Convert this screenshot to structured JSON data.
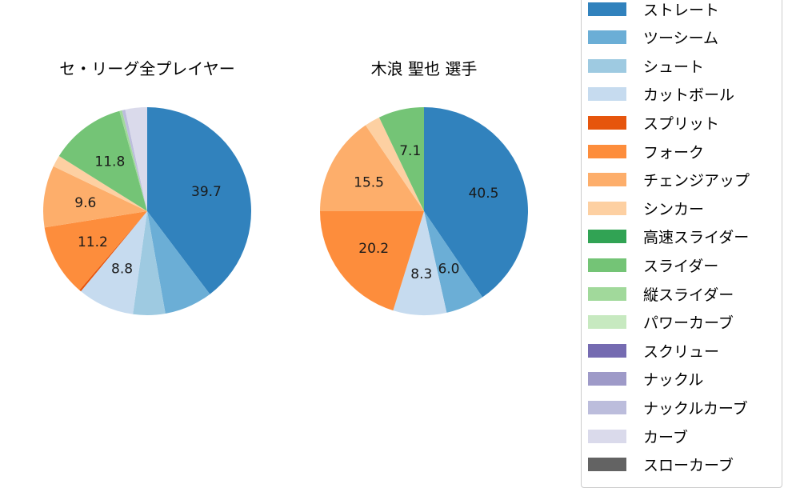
{
  "chart_data": [
    {
      "type": "pie",
      "title": "セ・リーグ全プレイヤー",
      "categories": [
        "ストレート",
        "ツーシーム",
        "シュート",
        "カットボール",
        "スプリット",
        "フォーク",
        "チェンジアップ",
        "シンカー",
        "スライダー",
        "縦スライダー",
        "ナックルカーブ",
        "カーブ"
      ],
      "values": [
        39.7,
        7.5,
        5.0,
        8.8,
        0.3,
        11.2,
        9.6,
        1.8,
        11.8,
        0.4,
        0.5,
        3.4
      ],
      "labels_shown": [
        "39.7",
        "",
        "",
        "8.8",
        "",
        "11.2",
        "9.6",
        "",
        "11.8",
        "",
        "",
        ""
      ],
      "start_angle": 90,
      "direction": "clockwise"
    },
    {
      "type": "pie",
      "title": "木浪 聖也  選手",
      "categories": [
        "ストレート",
        "ツーシーム",
        "カットボール",
        "フォーク",
        "チェンジアップ",
        "シンカー",
        "スライダー"
      ],
      "values": [
        40.5,
        6.0,
        8.3,
        20.2,
        15.5,
        2.4,
        7.1
      ],
      "labels_shown": [
        "40.5",
        "6.0",
        "8.3",
        "20.2",
        "15.5",
        "",
        "7.1"
      ],
      "start_angle": 90,
      "direction": "clockwise"
    }
  ],
  "titles": {
    "left": "セ・リーグ全プレイヤー",
    "right": "木浪 聖也  選手"
  },
  "legend": [
    {
      "label": "ストレート",
      "color": "#3182bd"
    },
    {
      "label": "ツーシーム",
      "color": "#6baed6"
    },
    {
      "label": "シュート",
      "color": "#9ecae1"
    },
    {
      "label": "カットボール",
      "color": "#c6dbef"
    },
    {
      "label": "スプリット",
      "color": "#e6550d"
    },
    {
      "label": "フォーク",
      "color": "#fd8d3c"
    },
    {
      "label": "チェンジアップ",
      "color": "#fdae6b"
    },
    {
      "label": "シンカー",
      "color": "#fdd0a2"
    },
    {
      "label": "高速スライダー",
      "color": "#31a354"
    },
    {
      "label": "スライダー",
      "color": "#74c476"
    },
    {
      "label": "縦スライダー",
      "color": "#a1d99b"
    },
    {
      "label": "パワーカーブ",
      "color": "#c7e9c0"
    },
    {
      "label": "スクリュー",
      "color": "#756bb1"
    },
    {
      "label": "ナックル",
      "color": "#9e9ac8"
    },
    {
      "label": "ナックルカーブ",
      "color": "#bcbddc"
    },
    {
      "label": "カーブ",
      "color": "#dadaeb"
    },
    {
      "label": "スローカーブ",
      "color": "#636363"
    }
  ]
}
